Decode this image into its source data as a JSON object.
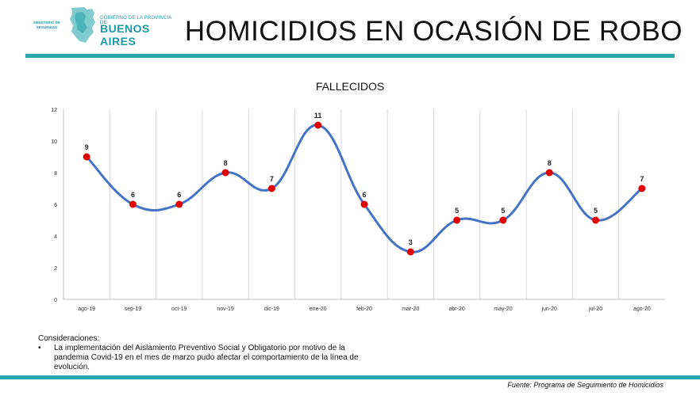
{
  "header": {
    "logo_ministry": "MINISTERIO DE SEGURIDAD",
    "logo_government": "GOBIERNO DE LA PROVINCIA DE",
    "logo_province": "BUENOS AIRES",
    "title": "HOMICIDIOS EN OCASIÓN DE ROBO"
  },
  "colors": {
    "accent": "#2ba7aa",
    "line": "#4472c4",
    "marker": "#e00000"
  },
  "chart_data": {
    "type": "line",
    "title": "FALLECIDOS",
    "xlabel": "",
    "ylabel": "",
    "categories": [
      "ago-19",
      "sep-19",
      "oct-19",
      "nov-19",
      "dic-19",
      "ene-20",
      "feb-20",
      "mar-20",
      "abr-20",
      "may-20",
      "jun-20",
      "jul-20",
      "ago-20"
    ],
    "series": [
      {
        "values": [
          9,
          6,
          6,
          8,
          7,
          11,
          6,
          3,
          5,
          5,
          8,
          5,
          7
        ]
      }
    ],
    "ylim": [
      0,
      12
    ],
    "yticks": [
      0,
      2,
      4,
      6,
      8,
      10,
      12
    ],
    "grid": "vertical",
    "legend": "none",
    "smooth": true
  },
  "notes": {
    "heading": "Consideraciones:",
    "bullet": "•",
    "items": [
      "La implementación del Aislamiento Preventivo Social y Obligatorio por motivo de la pandemia Covid-19 en el mes de marzo pudo afectar el comportamiento de la línea de evolución."
    ]
  },
  "footer": {
    "source": "Fuente: Programa de Seguimiento de Homicidios"
  }
}
